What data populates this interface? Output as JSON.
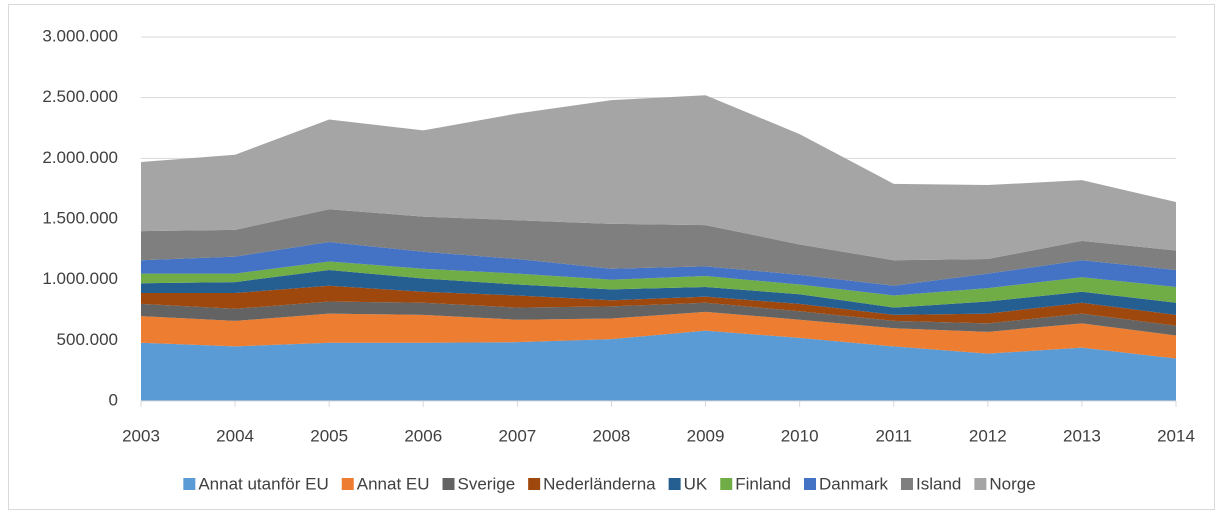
{
  "chart_data": {
    "type": "stacked-area",
    "categories": [
      "2003",
      "2004",
      "2005",
      "2006",
      "2007",
      "2008",
      "2009",
      "2010",
      "2011",
      "2012",
      "2013",
      "2014"
    ],
    "series": [
      {
        "name": "Annat utanför EU",
        "color": "#5b9bd5",
        "values": [
          480000,
          450000,
          480000,
          480000,
          485000,
          510000,
          580000,
          520000,
          450000,
          390000,
          440000,
          350000
        ]
      },
      {
        "name": "Annat EU",
        "color": "#ed7d31",
        "values": [
          220000,
          210000,
          240000,
          230000,
          185000,
          170000,
          155000,
          150000,
          150000,
          180000,
          200000,
          190000
        ]
      },
      {
        "name": "Sverige",
        "color": "#636363",
        "values": [
          100000,
          100000,
          100000,
          100000,
          100000,
          100000,
          75000,
          70000,
          60000,
          70000,
          80000,
          80000
        ]
      },
      {
        "name": "Nederländerna",
        "color": "#9e480e",
        "values": [
          90000,
          130000,
          130000,
          90000,
          100000,
          50000,
          50000,
          60000,
          50000,
          80000,
          90000,
          90000
        ]
      },
      {
        "name": "UK",
        "color": "#255e91",
        "values": [
          80000,
          90000,
          130000,
          110000,
          90000,
          90000,
          80000,
          80000,
          60000,
          100000,
          90000,
          100000
        ]
      },
      {
        "name": "Finland",
        "color": "#70ad47",
        "values": [
          80000,
          70000,
          70000,
          80000,
          90000,
          80000,
          90000,
          80000,
          100000,
          110000,
          120000,
          130000
        ]
      },
      {
        "name": "Danmark",
        "color": "#4472c4",
        "values": [
          110000,
          140000,
          160000,
          140000,
          120000,
          90000,
          80000,
          80000,
          80000,
          120000,
          140000,
          140000
        ]
      },
      {
        "name": "Island",
        "color": "#7f7f7f",
        "values": [
          240000,
          220000,
          270000,
          290000,
          320000,
          370000,
          340000,
          250000,
          210000,
          120000,
          160000,
          160000
        ]
      },
      {
        "name": "Norge",
        "color": "#a5a5a5",
        "values": [
          570000,
          620000,
          740000,
          710000,
          880000,
          1020000,
          1070000,
          910000,
          630000,
          610000,
          500000,
          400000
        ]
      }
    ],
    "ylim": [
      0,
      3000000
    ],
    "yticks": [
      0,
      {
        "value": 500000,
        "label": "500.000"
      },
      {
        "value": 1000000,
        "label": "1.000.000"
      },
      {
        "value": 1500000,
        "label": "1.500.000"
      },
      {
        "value": 2000000,
        "label": "2.000.000"
      },
      {
        "value": 2500000,
        "label": "2.500.000"
      },
      {
        "value": 3000000,
        "label": "3.000.000"
      }
    ],
    "grid": true,
    "legend": "bottom"
  }
}
